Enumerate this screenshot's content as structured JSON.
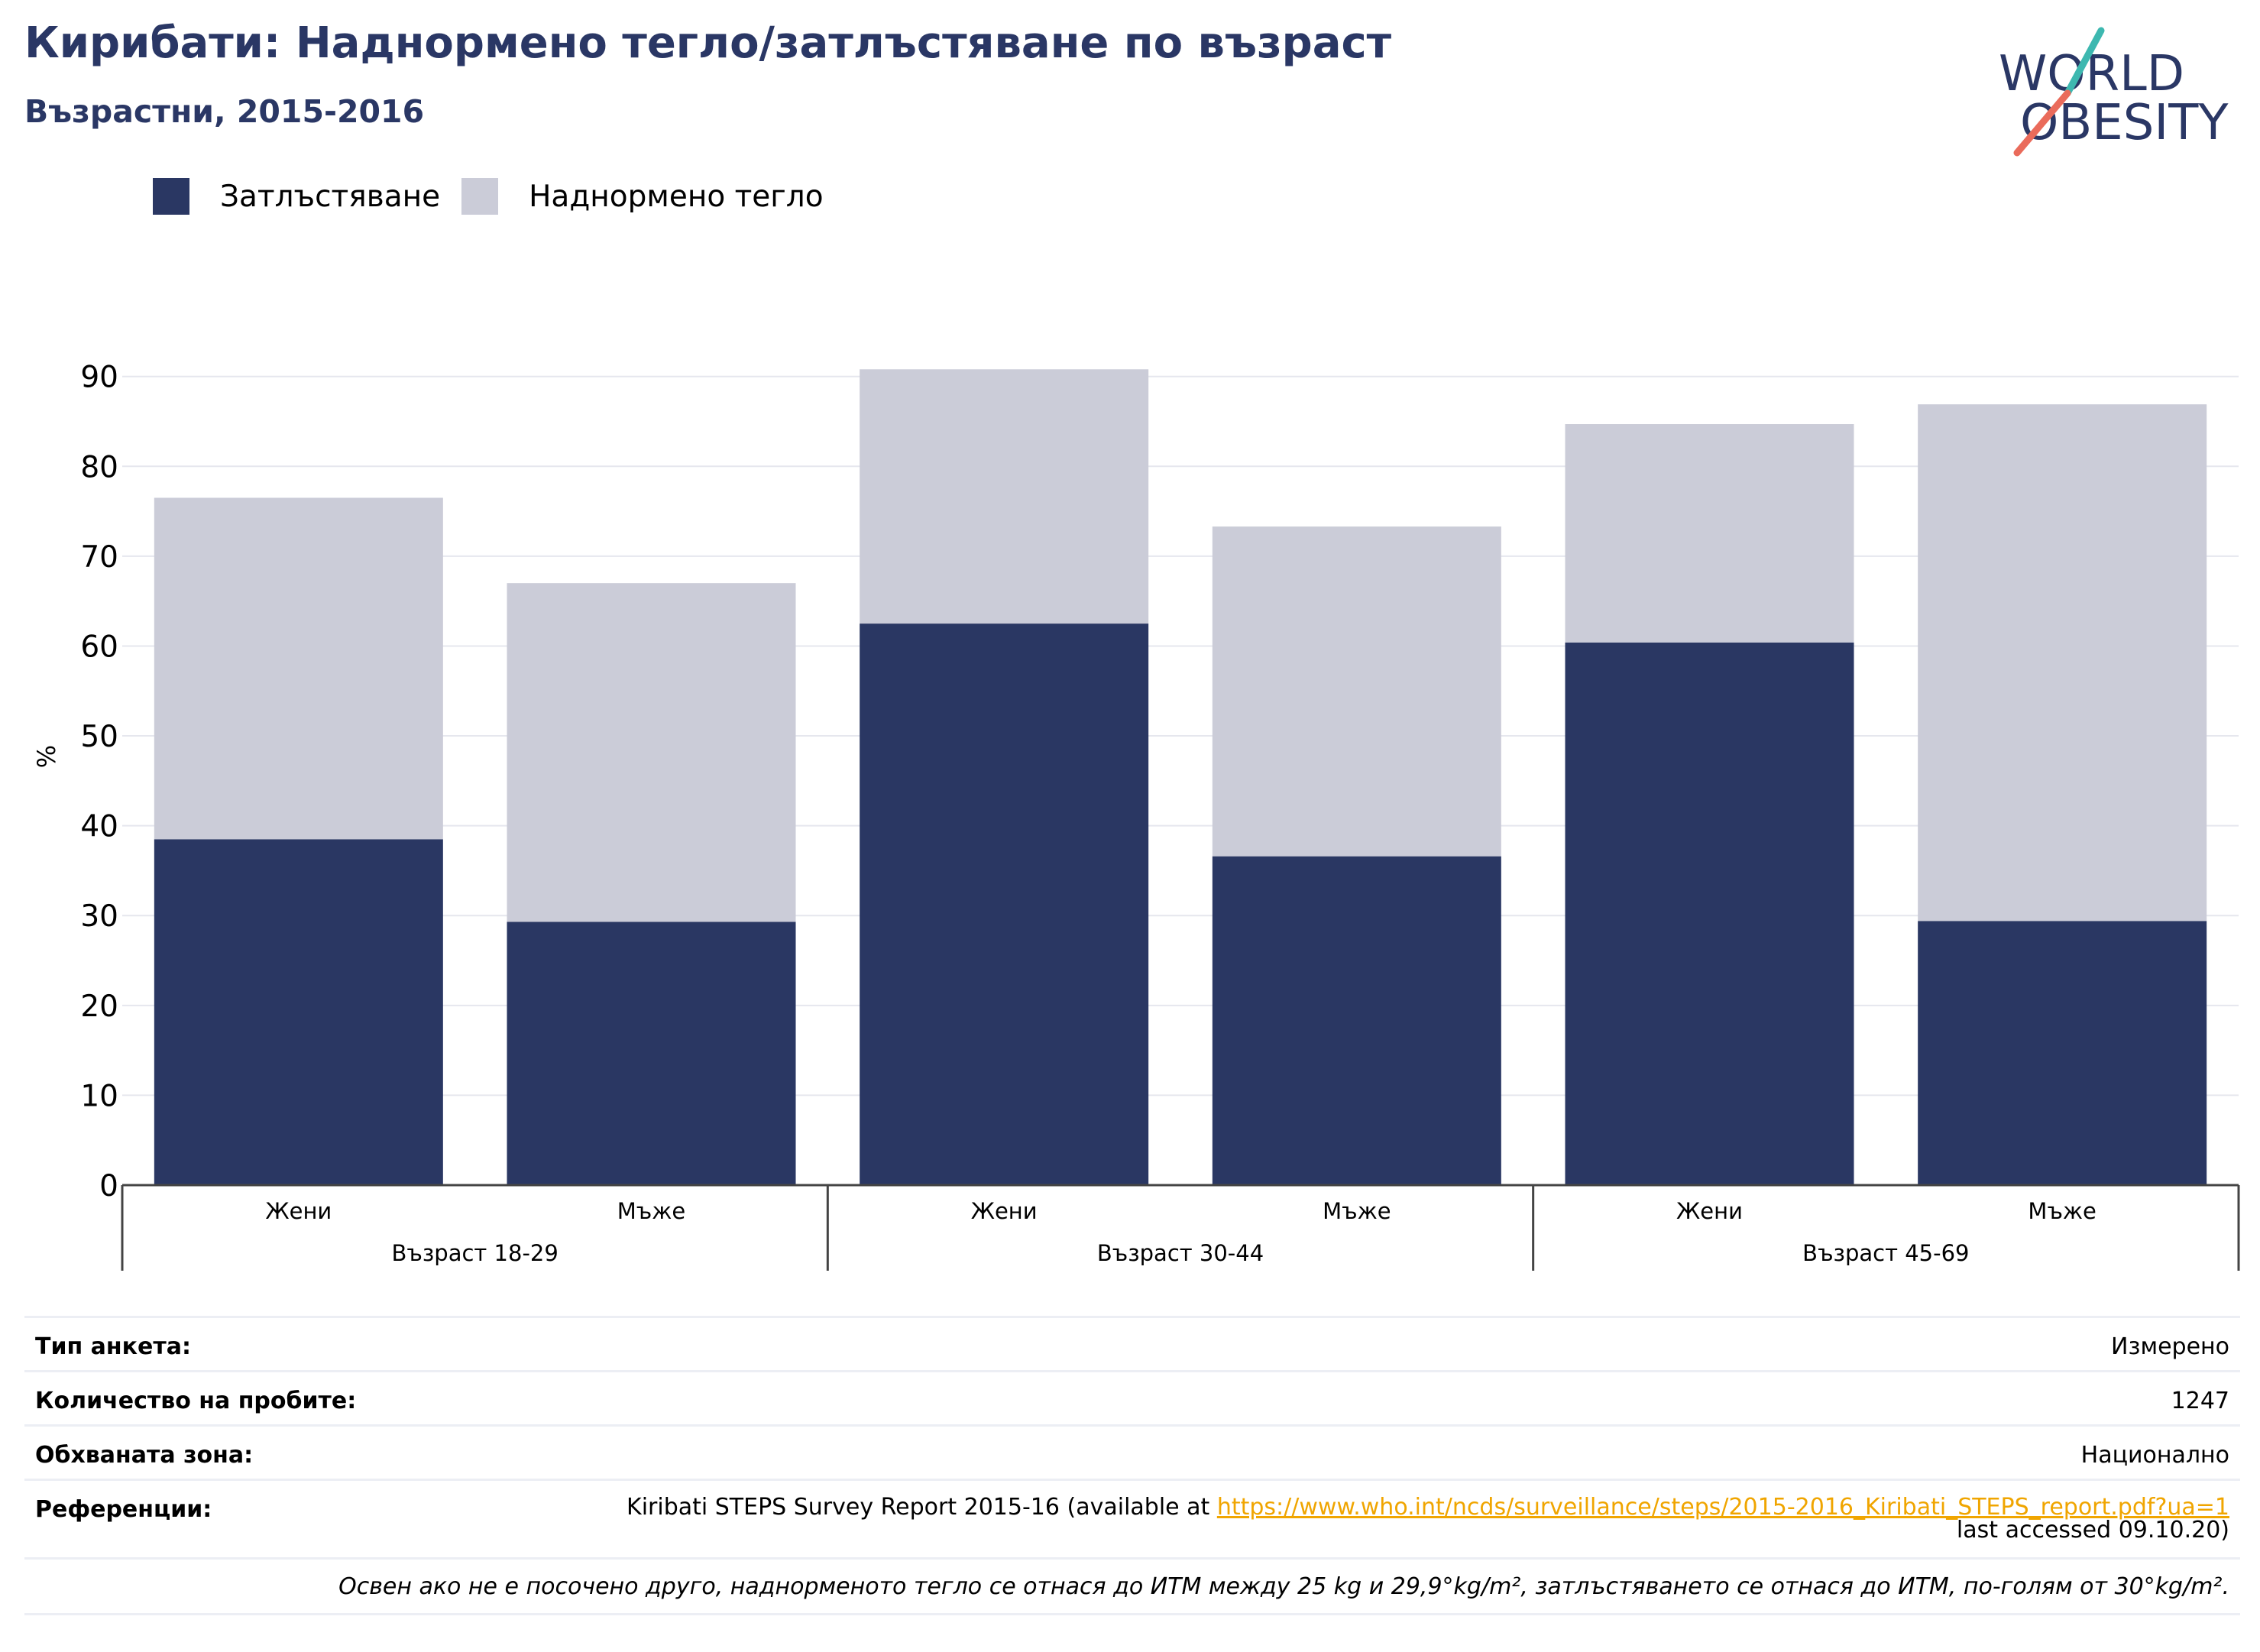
{
  "title": "Кирибати: Наднормено тегло/затлъстяване по възраст",
  "subtitle": "Възрастни, 2015-2016",
  "logo": {
    "line1": "WORLD",
    "line2": "OBESITY"
  },
  "legend": [
    {
      "label": "Затлъстяване",
      "color": "#2a3763"
    },
    {
      "label": "Наднормено тегло",
      "color": "#cbccd8"
    }
  ],
  "chart_data": {
    "type": "bar",
    "stacked": true,
    "ylabel": "%",
    "ylim": [
      0,
      90
    ],
    "yticks": [
      0,
      10,
      20,
      30,
      40,
      50,
      60,
      70,
      80,
      90
    ],
    "grid": true,
    "legend_position": "top-left",
    "categories": [
      "Жени",
      "Мъже",
      "Жени",
      "Мъже",
      "Жени",
      "Мъже"
    ],
    "groups": [
      {
        "label": "Възраст 18-29",
        "categories": [
          "Жени",
          "Мъже"
        ]
      },
      {
        "label": "Възраст 30-44",
        "categories": [
          "Жени",
          "Мъже"
        ]
      },
      {
        "label": "Възраст 45-69",
        "categories": [
          "Жени",
          "Мъже"
        ]
      }
    ],
    "series": [
      {
        "name": "Затлъстяване",
        "color": "#2a3763",
        "values": [
          38.5,
          29.3,
          62.5,
          36.6,
          60.4,
          29.4
        ]
      },
      {
        "name": "Наднормено тегло",
        "color": "#cbccd8",
        "values": [
          38.0,
          37.7,
          28.3,
          36.7,
          24.3,
          57.5
        ]
      }
    ]
  },
  "info": {
    "survey_type_label": "Тип анкета:",
    "survey_type_value": "Измерено",
    "sample_size_label": "Количество на пробите:",
    "sample_size_value": "1247",
    "area_label": "Обхваната зона:",
    "area_value": "Национално",
    "references_label": "Референции:",
    "ref_prefix": "Kiribati STEPS Survey Report 2015-16 (available at ",
    "ref_link": "https://www.who.int/ncds/surveillance/steps/2015-2016_Kiribati_STEPS_report.pdf?ua=1",
    "ref_suffix": "last accessed 09.10.20)",
    "note": "Освен ако не е посочено друго, наднорменото тегло се отнася до ИТМ между 25 kg и 29,9°kg/m², затлъстяването се отнася до ИТМ, по-голям от 30°kg/m²."
  }
}
